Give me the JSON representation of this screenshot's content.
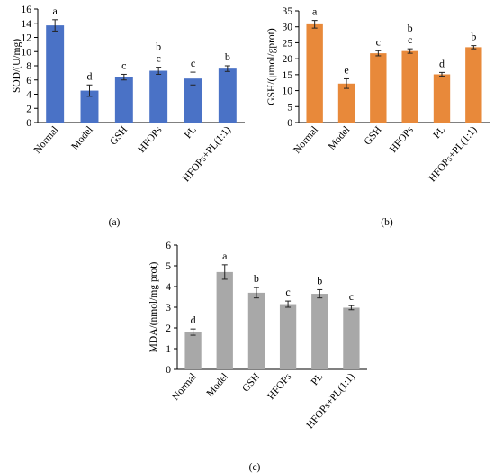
{
  "chart_data": [
    {
      "type": "bar",
      "panel_label": "(a)",
      "categories": [
        "Normal",
        "Model",
        "GSH",
        "HFOPs",
        "PL",
        "HFOPs+PL(1:1)"
      ],
      "values": [
        13.7,
        4.5,
        6.4,
        7.3,
        6.2,
        7.6
      ],
      "errors": [
        0.8,
        0.8,
        0.4,
        0.5,
        0.9,
        0.4
      ],
      "significance": [
        "a",
        "d",
        "c",
        "b\nc",
        "c",
        "b"
      ],
      "ylabel": "SOD/(U/mg)",
      "xlabel": "",
      "ylim": [
        0,
        16
      ],
      "yticks": [
        0,
        2,
        4,
        6,
        8,
        10,
        12,
        14,
        16
      ],
      "bar_color": "#4a72c6",
      "grid": false
    },
    {
      "type": "bar",
      "panel_label": "(b)",
      "categories": [
        "Normal",
        "Model",
        "GSH",
        "HFOPs",
        "PL",
        "HFOPs+PL(1:1)"
      ],
      "values": [
        30.8,
        12.2,
        21.7,
        22.4,
        15.1,
        23.6
      ],
      "errors": [
        1.2,
        1.5,
        0.8,
        0.7,
        0.6,
        0.5
      ],
      "significance": [
        "a",
        "e",
        "c",
        "b\nc",
        "d",
        "b"
      ],
      "ylabel": "GSH/(μmol/gprot)",
      "xlabel": "",
      "ylim": [
        0,
        35
      ],
      "yticks": [
        0,
        5,
        10,
        15,
        20,
        25,
        30,
        35
      ],
      "bar_color": "#e8893a",
      "grid": false
    },
    {
      "type": "bar",
      "panel_label": "(c)",
      "categories": [
        "Normal",
        "Model",
        "GSH",
        "HFOPs",
        "PL",
        "HFOPs+PL(1:1)"
      ],
      "values": [
        1.8,
        4.7,
        3.7,
        3.15,
        3.65,
        2.98
      ],
      "errors": [
        0.15,
        0.35,
        0.25,
        0.15,
        0.2,
        0.1
      ],
      "significance": [
        "d",
        "a",
        "b",
        "c",
        "b",
        "c"
      ],
      "ylabel": "MDA/(nmol/mg prot)",
      "xlabel": "",
      "ylim": [
        0,
        6
      ],
      "yticks": [
        0,
        1,
        2,
        3,
        4,
        5,
        6
      ],
      "bar_color": "#a8a8a8",
      "grid": false
    }
  ]
}
